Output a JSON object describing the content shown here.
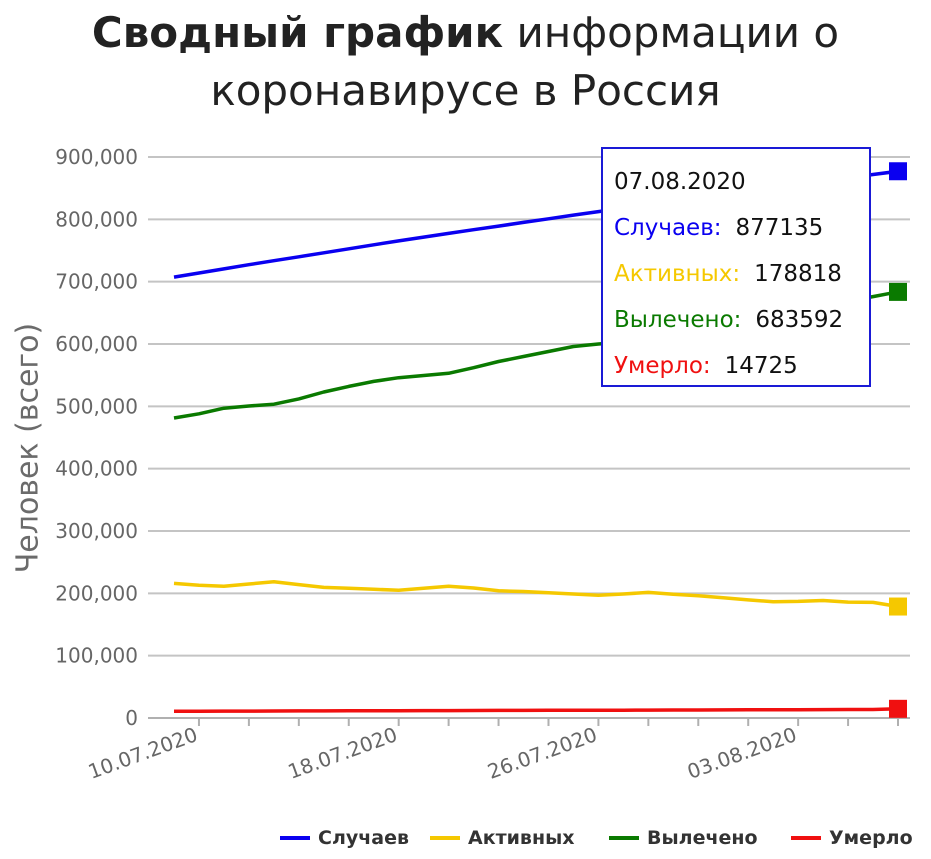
{
  "title": {
    "bold": "Сводный график",
    "line1_rest": "информации о",
    "line2": "коронавирусе в Россия"
  },
  "tooltip": {
    "date": "07.08.2020",
    "rows": [
      {
        "label": "Случаев:",
        "value": "877135",
        "color": "#0a00f0"
      },
      {
        "label": "Активных:",
        "value": "178818",
        "color": "#f5c800"
      },
      {
        "label": "Вылечено:",
        "value": "683592",
        "color": "#0a7a00"
      },
      {
        "label": "Умерло:",
        "value": "14725",
        "color": "#f01010"
      }
    ]
  },
  "chart_data": {
    "type": "line",
    "ylabel": "Человек (всего)",
    "xlabel": "",
    "ylim": [
      0,
      900000
    ],
    "yticks": [
      "0",
      "100,000",
      "200,000",
      "300,000",
      "400,000",
      "500,000",
      "600,000",
      "700,000",
      "800,000",
      "900,000"
    ],
    "xtick_labels": [
      "10.07.2020",
      "18.07.2020",
      "26.07.2020",
      "03.08.2020"
    ],
    "x": [
      "09.07.2020",
      "10.07.2020",
      "11.07.2020",
      "12.07.2020",
      "13.07.2020",
      "14.07.2020",
      "15.07.2020",
      "16.07.2020",
      "17.07.2020",
      "18.07.2020",
      "19.07.2020",
      "20.07.2020",
      "21.07.2020",
      "22.07.2020",
      "23.07.2020",
      "24.07.2020",
      "25.07.2020",
      "26.07.2020",
      "27.07.2020",
      "28.07.2020",
      "29.07.2020",
      "30.07.2020",
      "31.07.2020",
      "01.08.2020",
      "02.08.2020",
      "03.08.2020",
      "04.08.2020",
      "05.08.2020",
      "06.08.2020",
      "07.08.2020"
    ],
    "grid": true,
    "legend_position": "bottom-right",
    "series": [
      {
        "name": "Случаев",
        "color": "#0a00f0",
        "values": [
          707301,
          713936,
          720547,
          727162,
          733699,
          739947,
          746369,
          752797,
          759203,
          765437,
          771546,
          777486,
          783328,
          789190,
          795038,
          800849,
          806720,
          812485,
          818120,
          823515,
          828990,
          834499,
          839981,
          845443,
          850870,
          856264,
          861423,
          866627,
          871894,
          877135
        ]
      },
      {
        "name": "Активных",
        "color": "#f5c800",
        "values": [
          216000,
          213000,
          211500,
          215000,
          218500,
          214000,
          209500,
          208000,
          206500,
          205000,
          208000,
          211500,
          208500,
          204000,
          203000,
          201000,
          199000,
          197000,
          199000,
          201500,
          198500,
          196000,
          193000,
          189500,
          186500,
          187000,
          188500,
          186000,
          185500,
          178818
        ]
      },
      {
        "name": "Вылечено",
        "color": "#0a7a00",
        "values": [
          481316,
          488000,
          497000,
          500500,
          503500,
          512000,
          523000,
          532000,
          540000,
          546000,
          549500,
          553000,
          562000,
          572000,
          580000,
          588000,
          596000,
          600000,
          603000,
          609000,
          616000,
          625000,
          633000,
          641000,
          648000,
          655000,
          662000,
          669000,
          676000,
          683592
        ]
      },
      {
        "name": "Умерло",
        "color": "#f01010",
        "values": [
          10843,
          10956,
          11017,
          11128,
          11205,
          11335,
          11439,
          11520,
          11614,
          11705,
          11800,
          11917,
          12003,
          12123,
          12245,
          12342,
          12427,
          12529,
          12580,
          12683,
          12795,
          12892,
          13026,
          13149,
          13241,
          13334,
          13448,
          13597,
          13673,
          14725
        ]
      }
    ]
  }
}
